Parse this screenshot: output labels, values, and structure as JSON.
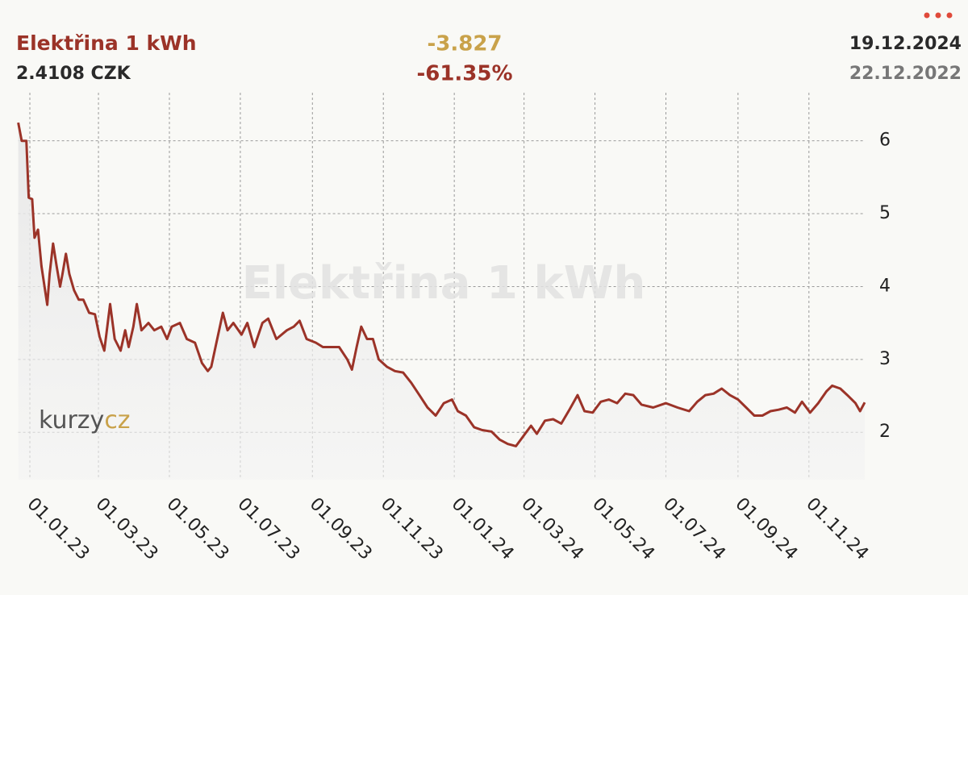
{
  "chart_data": {
    "type": "line",
    "title": "Elektřina 1 kWh",
    "current": "2.4108 CZK",
    "change": "-3.827",
    "change_percent": "-61.35%",
    "date_end": "19.12.2024",
    "date_start": "22.12.2022",
    "logo": "kurzy",
    "logo_accent": "cz",
    "color": "#9b3328",
    "grid": true,
    "xlim": [
      "2022-12-22",
      "2024-12-19"
    ],
    "xticks": [
      {
        "value": "2023-01-01",
        "label": "01.01.23"
      },
      {
        "value": "2023-03-01",
        "label": "01.03.23"
      },
      {
        "value": "2023-05-01",
        "label": "01.05.23"
      },
      {
        "value": "2023-07-01",
        "label": "01.07.23"
      },
      {
        "value": "2023-09-01",
        "label": "01.09.23"
      },
      {
        "value": "2023-11-01",
        "label": "01.11.23"
      },
      {
        "value": "2024-01-01",
        "label": "01.01.24"
      },
      {
        "value": "2024-03-01",
        "label": "01.03.24"
      },
      {
        "value": "2024-05-01",
        "label": "01.05.24"
      },
      {
        "value": "2024-07-01",
        "label": "01.07.24"
      },
      {
        "value": "2024-09-01",
        "label": "01.09.24"
      },
      {
        "value": "2024-11-01",
        "label": "01.11.24"
      }
    ],
    "ylim": [
      1.35,
      6.66
    ],
    "yticks": [
      2,
      3,
      4,
      5,
      6
    ],
    "x": [
      "2022-12-22",
      "2022-12-25",
      "2022-12-29",
      "2022-12-31",
      "2023-01-03",
      "2023-01-05",
      "2023-01-08",
      "2023-01-11",
      "2023-01-16",
      "2023-01-18",
      "2023-01-21",
      "2023-01-24",
      "2023-01-27",
      "2023-01-29",
      "2023-02-01",
      "2023-02-04",
      "2023-02-08",
      "2023-02-12",
      "2023-02-16",
      "2023-02-21",
      "2023-02-26",
      "2023-03-02",
      "2023-03-06",
      "2023-03-11",
      "2023-03-15",
      "2023-03-20",
      "2023-03-24",
      "2023-03-27",
      "2023-03-31",
      "2023-04-03",
      "2023-04-07",
      "2023-04-13",
      "2023-04-18",
      "2023-04-24",
      "2023-04-29",
      "2023-05-03",
      "2023-05-10",
      "2023-05-16",
      "2023-05-23",
      "2023-05-29",
      "2023-06-03",
      "2023-06-06",
      "2023-06-10",
      "2023-06-16",
      "2023-06-20",
      "2023-06-25",
      "2023-07-02",
      "2023-07-07",
      "2023-07-13",
      "2023-07-20",
      "2023-07-25",
      "2023-08-01",
      "2023-08-10",
      "2023-08-16",
      "2023-08-21",
      "2023-08-27",
      "2023-09-04",
      "2023-09-10",
      "2023-09-17",
      "2023-09-24",
      "2023-10-01",
      "2023-10-05",
      "2023-10-09",
      "2023-10-13",
      "2023-10-18",
      "2023-10-23",
      "2023-10-28",
      "2023-11-04",
      "2023-11-11",
      "2023-11-18",
      "2023-11-25",
      "2023-12-02",
      "2023-12-09",
      "2023-12-16",
      "2023-12-23",
      "2023-12-30",
      "2024-01-04",
      "2024-01-11",
      "2024-01-18",
      "2024-01-25",
      "2024-02-02",
      "2024-02-09",
      "2024-02-16",
      "2024-02-23",
      "2024-03-01",
      "2024-03-07",
      "2024-03-12",
      "2024-03-19",
      "2024-03-26",
      "2024-04-02",
      "2024-04-09",
      "2024-04-16",
      "2024-04-22",
      "2024-04-29",
      "2024-05-06",
      "2024-05-13",
      "2024-05-20",
      "2024-05-27",
      "2024-06-03",
      "2024-06-10",
      "2024-06-20",
      "2024-07-01",
      "2024-07-11",
      "2024-07-21",
      "2024-07-28",
      "2024-08-04",
      "2024-08-11",
      "2024-08-18",
      "2024-08-25",
      "2024-09-01",
      "2024-09-08",
      "2024-09-15",
      "2024-09-22",
      "2024-09-29",
      "2024-10-06",
      "2024-10-13",
      "2024-10-20",
      "2024-10-26",
      "2024-11-02",
      "2024-11-09",
      "2024-11-16",
      "2024-11-21",
      "2024-11-28",
      "2024-12-04",
      "2024-12-11",
      "2024-12-15",
      "2024-12-19"
    ],
    "series": [
      {
        "name": "Elektřina 1 kWh",
        "color": "#9b3328",
        "values": [
          6.25,
          6.0,
          6.0,
          5.22,
          5.2,
          4.67,
          4.78,
          4.28,
          3.75,
          4.17,
          4.59,
          4.28,
          4.0,
          4.17,
          4.45,
          4.17,
          3.95,
          3.82,
          3.82,
          3.64,
          3.62,
          3.31,
          3.12,
          3.76,
          3.28,
          3.12,
          3.4,
          3.17,
          3.45,
          3.76,
          3.4,
          3.5,
          3.4,
          3.45,
          3.28,
          3.45,
          3.5,
          3.28,
          3.23,
          2.95,
          2.84,
          2.9,
          3.2,
          3.64,
          3.4,
          3.5,
          3.34,
          3.5,
          3.17,
          3.5,
          3.56,
          3.28,
          3.4,
          3.45,
          3.53,
          3.28,
          3.23,
          3.17,
          3.17,
          3.17,
          3.0,
          2.86,
          3.17,
          3.45,
          3.28,
          3.28,
          3.0,
          2.9,
          2.84,
          2.82,
          2.68,
          2.51,
          2.34,
          2.23,
          2.4,
          2.45,
          2.29,
          2.23,
          2.07,
          2.03,
          2.01,
          1.9,
          1.84,
          1.81,
          1.96,
          2.09,
          1.98,
          2.16,
          2.18,
          2.12,
          2.31,
          2.51,
          2.29,
          2.27,
          2.42,
          2.45,
          2.4,
          2.53,
          2.51,
          2.38,
          2.34,
          2.4,
          2.34,
          2.29,
          2.42,
          2.51,
          2.53,
          2.6,
          2.51,
          2.45,
          2.34,
          2.23,
          2.23,
          2.29,
          2.31,
          2.34,
          2.27,
          2.42,
          2.27,
          2.4,
          2.56,
          2.64,
          2.6,
          2.51,
          2.4,
          2.29,
          2.41
        ]
      }
    ]
  }
}
